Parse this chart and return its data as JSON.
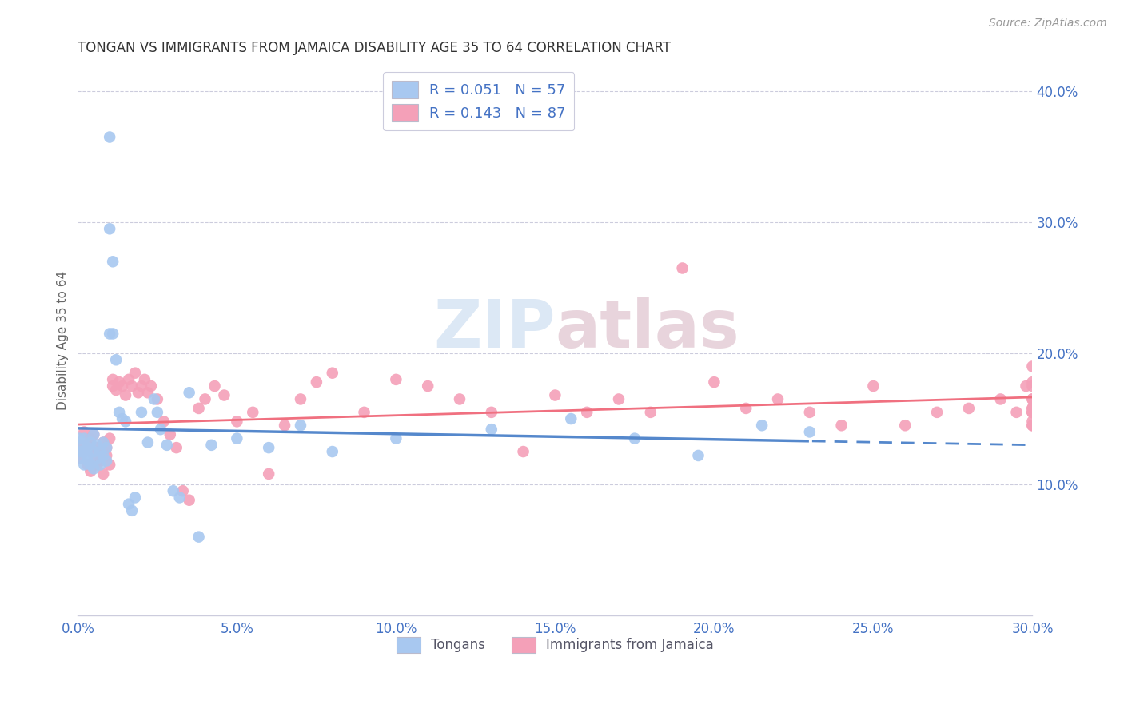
{
  "title": "TONGAN VS IMMIGRANTS FROM JAMAICA DISABILITY AGE 35 TO 64 CORRELATION CHART",
  "source": "Source: ZipAtlas.com",
  "ylabel": "Disability Age 35 to 64",
  "xlim": [
    0.0,
    0.3
  ],
  "ylim": [
    0.0,
    0.42
  ],
  "xticks": [
    0.0,
    0.05,
    0.1,
    0.15,
    0.2,
    0.25,
    0.3
  ],
  "xtick_labels": [
    "0.0%",
    "5.0%",
    "10.0%",
    "15.0%",
    "20.0%",
    "25.0%",
    "30.0%"
  ],
  "ytick_labels_right": [
    "10.0%",
    "20.0%",
    "30.0%",
    "40.0%"
  ],
  "yticks_right": [
    0.1,
    0.2,
    0.3,
    0.4
  ],
  "legend_r1": "R = 0.051",
  "legend_n1": "N = 57",
  "legend_r2": "R = 0.143",
  "legend_n2": "N = 87",
  "color_tongan": "#a8c8f0",
  "color_jamaica": "#f4a0b8",
  "color_text_blue": "#4472c4",
  "color_line_tongan": "#5588cc",
  "color_line_jamaica": "#f07080",
  "watermark": "ZIPatlas",
  "label_tongan": "Tongans",
  "label_jamaica": "Immigrants from Jamaica",
  "tongan_x": [
    0.0005,
    0.001,
    0.001,
    0.001,
    0.002,
    0.002,
    0.002,
    0.003,
    0.003,
    0.003,
    0.004,
    0.004,
    0.005,
    0.005,
    0.005,
    0.006,
    0.006,
    0.007,
    0.007,
    0.008,
    0.008,
    0.009,
    0.009,
    0.01,
    0.01,
    0.01,
    0.011,
    0.011,
    0.012,
    0.013,
    0.014,
    0.015,
    0.016,
    0.017,
    0.018,
    0.02,
    0.022,
    0.024,
    0.025,
    0.026,
    0.028,
    0.03,
    0.032,
    0.035,
    0.038,
    0.042,
    0.05,
    0.06,
    0.07,
    0.08,
    0.1,
    0.13,
    0.155,
    0.175,
    0.195,
    0.215,
    0.23
  ],
  "tongan_y": [
    0.135,
    0.13,
    0.12,
    0.125,
    0.135,
    0.125,
    0.115,
    0.128,
    0.118,
    0.122,
    0.132,
    0.115,
    0.138,
    0.125,
    0.112,
    0.13,
    0.12,
    0.125,
    0.115,
    0.132,
    0.122,
    0.128,
    0.118,
    0.365,
    0.295,
    0.215,
    0.27,
    0.215,
    0.195,
    0.155,
    0.15,
    0.148,
    0.085,
    0.08,
    0.09,
    0.155,
    0.132,
    0.165,
    0.155,
    0.142,
    0.13,
    0.095,
    0.09,
    0.17,
    0.06,
    0.13,
    0.135,
    0.128,
    0.145,
    0.125,
    0.135,
    0.142,
    0.15,
    0.135,
    0.122,
    0.145,
    0.14
  ],
  "jamaica_x": [
    0.001,
    0.001,
    0.002,
    0.002,
    0.003,
    0.003,
    0.004,
    0.004,
    0.005,
    0.005,
    0.006,
    0.006,
    0.007,
    0.007,
    0.008,
    0.008,
    0.009,
    0.009,
    0.01,
    0.01,
    0.011,
    0.011,
    0.012,
    0.013,
    0.014,
    0.015,
    0.016,
    0.017,
    0.018,
    0.019,
    0.02,
    0.021,
    0.022,
    0.023,
    0.025,
    0.027,
    0.029,
    0.031,
    0.033,
    0.035,
    0.038,
    0.04,
    0.043,
    0.046,
    0.05,
    0.055,
    0.06,
    0.065,
    0.07,
    0.075,
    0.08,
    0.09,
    0.1,
    0.11,
    0.12,
    0.13,
    0.14,
    0.15,
    0.16,
    0.17,
    0.18,
    0.19,
    0.2,
    0.21,
    0.22,
    0.23,
    0.24,
    0.25,
    0.26,
    0.27,
    0.28,
    0.29,
    0.295,
    0.298,
    0.3,
    0.3,
    0.3,
    0.3,
    0.3,
    0.3,
    0.3,
    0.3,
    0.3,
    0.3,
    0.3,
    0.3,
    0.3
  ],
  "jamaica_y": [
    0.13,
    0.12,
    0.14,
    0.125,
    0.115,
    0.13,
    0.135,
    0.11,
    0.138,
    0.122,
    0.128,
    0.115,
    0.118,
    0.125,
    0.132,
    0.108,
    0.122,
    0.128,
    0.135,
    0.115,
    0.175,
    0.18,
    0.172,
    0.178,
    0.175,
    0.168,
    0.18,
    0.175,
    0.185,
    0.17,
    0.175,
    0.18,
    0.17,
    0.175,
    0.165,
    0.148,
    0.138,
    0.128,
    0.095,
    0.088,
    0.158,
    0.165,
    0.175,
    0.168,
    0.148,
    0.155,
    0.108,
    0.145,
    0.165,
    0.178,
    0.185,
    0.155,
    0.18,
    0.175,
    0.165,
    0.155,
    0.125,
    0.168,
    0.155,
    0.165,
    0.155,
    0.265,
    0.178,
    0.158,
    0.165,
    0.155,
    0.145,
    0.175,
    0.145,
    0.155,
    0.158,
    0.165,
    0.155,
    0.175,
    0.19,
    0.155,
    0.148,
    0.158,
    0.165,
    0.175,
    0.145,
    0.158,
    0.165,
    0.155,
    0.178,
    0.145,
    0.155
  ]
}
